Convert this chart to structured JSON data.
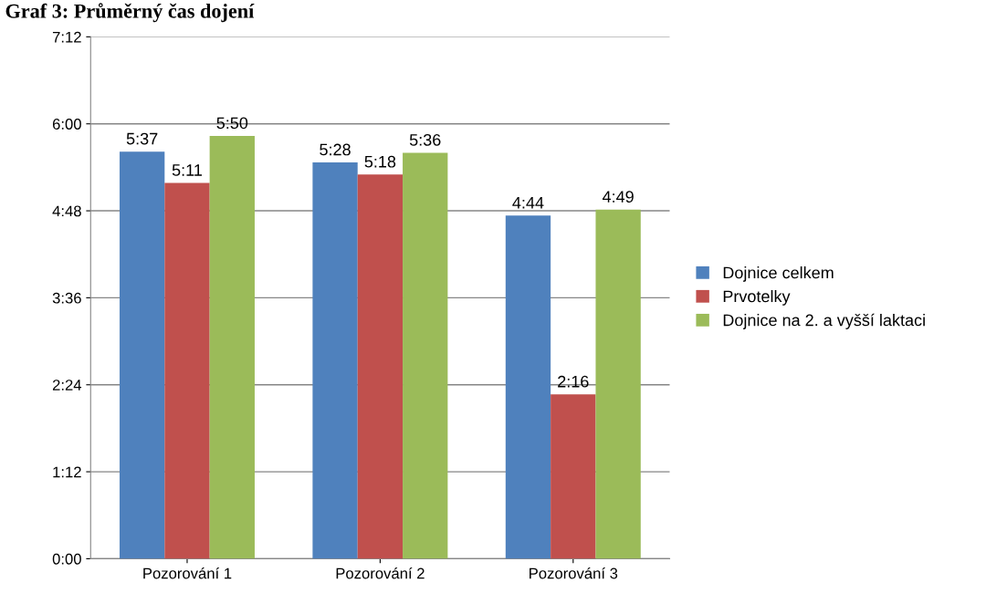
{
  "chart_data": {
    "type": "bar",
    "title": "Graf 3: Průměrný čas dojení",
    "categories": [
      "Pozorování 1",
      "Pozorování 2",
      "Pozorování 3"
    ],
    "series": [
      {
        "name": "Dojnice celkem",
        "color": "#4f81bd",
        "values": [
          337,
          328,
          284
        ],
        "value_labels": [
          "5:37",
          "5:28",
          "4:44"
        ]
      },
      {
        "name": "Prvotelky",
        "color": "#c0504d",
        "values": [
          311,
          318,
          136
        ],
        "value_labels": [
          "5:11",
          "5:18",
          "2:16"
        ]
      },
      {
        "name": "Dojnice na 2. a vyšší laktaci",
        "color": "#9bbb59",
        "values": [
          350,
          336,
          289
        ],
        "value_labels": [
          "5:50",
          "5:36",
          "4:49"
        ]
      }
    ],
    "ylim": [
      0,
      432
    ],
    "yticks": [
      {
        "value": 0,
        "label": "0:00"
      },
      {
        "value": 72,
        "label": "1:12"
      },
      {
        "value": 144,
        "label": "2:24"
      },
      {
        "value": 216,
        "label": "3:36"
      },
      {
        "value": 288,
        "label": "4:48"
      },
      {
        "value": 360,
        "label": "6:00"
      },
      {
        "value": 432,
        "label": "7:12"
      }
    ],
    "grid": "y",
    "legend": "right"
  }
}
